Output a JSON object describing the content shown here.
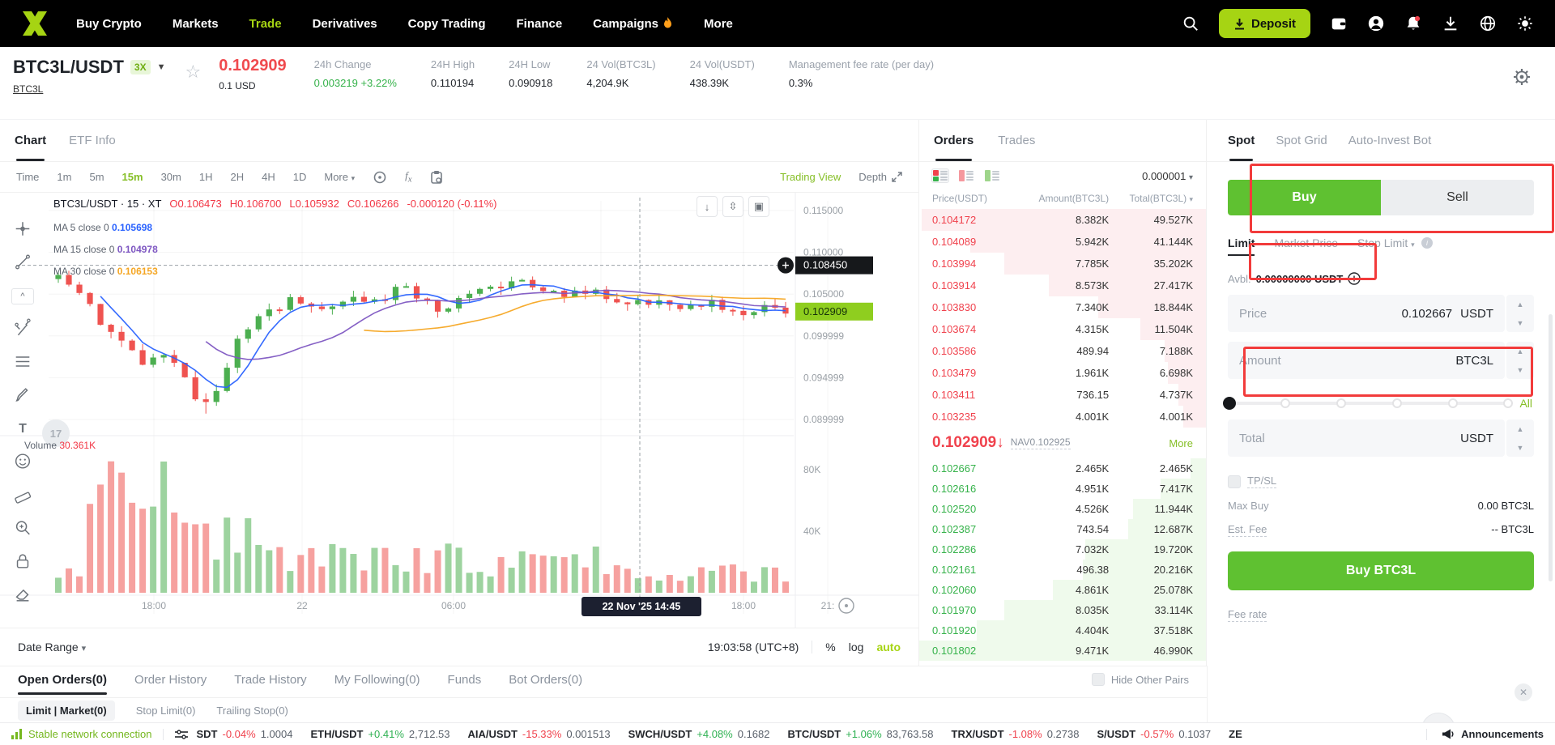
{
  "nav": {
    "logo": "XT",
    "items": [
      {
        "label": "Buy Crypto"
      },
      {
        "label": "Markets"
      },
      {
        "label": "Trade",
        "active": true
      },
      {
        "label": "Derivatives"
      },
      {
        "label": "Copy Trading"
      },
      {
        "label": "Finance"
      },
      {
        "label": "Campaigns",
        "flame": true
      },
      {
        "label": "More"
      }
    ],
    "deposit_label": "Deposit",
    "right_icons": [
      "search-icon",
      "wallet-icon",
      "account-icon",
      "notifications-icon",
      "download-icon",
      "globe-icon",
      "theme-icon"
    ]
  },
  "pair_header": {
    "symbol": "BTC3L/USDT",
    "leverage": "3X",
    "base_link": "BTC3L",
    "last_price": "0.102909",
    "usd_price": "0.1 USD",
    "stats": [
      {
        "label": "24h Change",
        "value": "0.003219 +3.22%",
        "green": true
      },
      {
        "label": "24H High",
        "value": "0.110194"
      },
      {
        "label": "24H Low",
        "value": "0.090918"
      },
      {
        "label": "24 Vol(BTC3L)",
        "value": "4,204.9K"
      },
      {
        "label": "24 Vol(USDT)",
        "value": "438.39K"
      },
      {
        "label": "Management fee rate (per day)",
        "value": "0.3%"
      }
    ]
  },
  "chart_panel": {
    "tabs": [
      {
        "label": "Chart",
        "active": true
      },
      {
        "label": "ETF Info"
      }
    ],
    "timeframes": [
      {
        "label": "Time"
      },
      {
        "label": "1m"
      },
      {
        "label": "5m"
      },
      {
        "label": "15m",
        "active": true
      },
      {
        "label": "30m"
      },
      {
        "label": "1H"
      },
      {
        "label": "2H"
      },
      {
        "label": "4H"
      },
      {
        "label": "1D"
      },
      {
        "label": "More",
        "caret": true
      }
    ],
    "trading_view_label": "Trading View",
    "depth_label": "Depth",
    "legend_title": "BTC3L/USDT · 15 · XT",
    "ohlc": {
      "o": "O0.106473",
      "h": "H0.106700",
      "l": "L0.105932",
      "c": "C0.106266",
      "chg": "-0.000120 (-0.11%)"
    },
    "ma": [
      {
        "label": "MA 5 close 0",
        "value": "0.105698",
        "color": "#2962ff"
      },
      {
        "label": "MA 15 close 0",
        "value": "0.104978",
        "color": "#7e57c2"
      },
      {
        "label": "MA 30 close 0",
        "value": "0.106153",
        "color": "#f5a623"
      }
    ],
    "volume_label": "Volume",
    "volume_value": "30.361K",
    "crosshair_price": "0.108450",
    "current_price": "0.102909",
    "tooltip_time": "22 Nov '25  14:45",
    "date_range_label": "Date Range",
    "clock": "19:03:58 (UTC+8)",
    "scale_pct": "%",
    "scale_log": "log",
    "scale_auto": "auto"
  },
  "chart_data": {
    "type": "candlestick",
    "symbol": "BTC3L/USDT",
    "interval": "15m",
    "price_axis_ticks": [
      [
        "0.115000",
        0.115
      ],
      [
        "0.110000",
        0.11
      ],
      [
        "0.105000",
        0.105
      ],
      [
        "0.099999",
        0.099999
      ],
      [
        "0.094999",
        0.094999
      ],
      [
        "0.089999",
        0.089999
      ]
    ],
    "volume_axis_ticks": [
      [
        "80K",
        80
      ],
      [
        "40K",
        40
      ]
    ],
    "time_axis_ticks": [
      [
        "18:00",
        190
      ],
      [
        "22",
        373
      ],
      [
        "06:00",
        560
      ],
      [
        "12:00",
        742
      ],
      [
        "18:00",
        918
      ],
      [
        "21:",
        1022
      ]
    ],
    "ylim": [
      0.0885,
      0.1175
    ],
    "crosshair": {
      "x": 790,
      "price": 0.10845
    },
    "last_price": 0.102909,
    "pivots": [
      [
        0,
        0.1068
      ],
      [
        0.03,
        0.1052
      ],
      [
        0.06,
        0.1014
      ],
      [
        0.09,
        0.0988
      ],
      [
        0.12,
        0.0965
      ],
      [
        0.14,
        0.0986
      ],
      [
        0.16,
        0.0966
      ],
      [
        0.18,
        0.0938
      ],
      [
        0.2,
        0.0916
      ],
      [
        0.22,
        0.0942
      ],
      [
        0.25,
        0.0998
      ],
      [
        0.28,
        0.1022
      ],
      [
        0.32,
        0.1044
      ],
      [
        0.36,
        0.1028
      ],
      [
        0.4,
        0.1048
      ],
      [
        0.44,
        0.1038
      ],
      [
        0.47,
        0.106
      ],
      [
        0.5,
        0.1041
      ],
      [
        0.53,
        0.1032
      ],
      [
        0.56,
        0.1049
      ],
      [
        0.6,
        0.1058
      ],
      [
        0.63,
        0.1069
      ],
      [
        0.66,
        0.1056
      ],
      [
        0.7,
        0.1048
      ],
      [
        0.74,
        0.1053
      ],
      [
        0.78,
        0.1038
      ],
      [
        0.82,
        0.1044
      ],
      [
        0.86,
        0.1032
      ],
      [
        0.9,
        0.1038
      ],
      [
        0.94,
        0.1028
      ],
      [
        0.97,
        0.1033
      ],
      [
        1,
        0.1029
      ]
    ],
    "low_wick": {
      "index_fraction": 0.2,
      "price": 0.0907
    },
    "up_color": "#4CAF50",
    "down_color": "#ef5350"
  },
  "orderbook": {
    "tabs": [
      {
        "label": "Orders",
        "active": true
      },
      {
        "label": "Trades"
      }
    ],
    "precision": "0.000001",
    "headers": [
      "Price(USDT)",
      "Amount(BTC3L)",
      "Total(BTC3L)"
    ],
    "asks": [
      {
        "price": "0.104172",
        "amount": "8.382K",
        "total": "49.527K"
      },
      {
        "price": "0.104089",
        "amount": "5.942K",
        "total": "41.144K"
      },
      {
        "price": "0.103994",
        "amount": "7.785K",
        "total": "35.202K"
      },
      {
        "price": "0.103914",
        "amount": "8.573K",
        "total": "27.417K"
      },
      {
        "price": "0.103830",
        "amount": "7.340K",
        "total": "18.844K"
      },
      {
        "price": "0.103674",
        "amount": "4.315K",
        "total": "11.504K"
      },
      {
        "price": "0.103586",
        "amount": "489.94",
        "total": "7.188K"
      },
      {
        "price": "0.103479",
        "amount": "1.961K",
        "total": "6.698K"
      },
      {
        "price": "0.103411",
        "amount": "736.15",
        "total": "4.737K"
      },
      {
        "price": "0.103235",
        "amount": "4.001K",
        "total": "4.001K"
      }
    ],
    "mid": {
      "price": "0.102909",
      "arrow": "↓",
      "nav": "NAV0.102925",
      "more": "More"
    },
    "bids": [
      {
        "price": "0.102667",
        "amount": "2.465K",
        "total": "2.465K"
      },
      {
        "price": "0.102616",
        "amount": "4.951K",
        "total": "7.417K"
      },
      {
        "price": "0.102520",
        "amount": "4.526K",
        "total": "11.944K"
      },
      {
        "price": "0.102387",
        "amount": "743.54",
        "total": "12.687K"
      },
      {
        "price": "0.102286",
        "amount": "7.032K",
        "total": "19.720K"
      },
      {
        "price": "0.102161",
        "amount": "496.38",
        "total": "20.216K"
      },
      {
        "price": "0.102060",
        "amount": "4.861K",
        "total": "25.078K"
      },
      {
        "price": "0.101970",
        "amount": "8.035K",
        "total": "33.114K"
      },
      {
        "price": "0.101920",
        "amount": "4.404K",
        "total": "37.518K"
      },
      {
        "price": "0.101802",
        "amount": "9.471K",
        "total": "46.990K"
      }
    ],
    "max_ask_total": 50.0,
    "max_bid_total": 47.0
  },
  "trade_panel": {
    "tabs": [
      {
        "label": "Spot",
        "active": true
      },
      {
        "label": "Spot Grid"
      },
      {
        "label": "Auto-Invest Bot"
      }
    ],
    "buy_label": "Buy",
    "sell_label": "Sell",
    "order_type_tabs": [
      {
        "label": "Limit",
        "active": true
      },
      {
        "label": "Market Price"
      }
    ],
    "stop_limit_label": "Stop Limit",
    "avbl_label": "Avbl:",
    "avbl_value": "0.00000000 USDT",
    "price_field": {
      "label": "Price",
      "value": "0.102667",
      "unit": "USDT"
    },
    "amount_field": {
      "label": "Amount",
      "unit": "BTC3L"
    },
    "slider_all": "All",
    "total_field": {
      "label": "Total",
      "unit": "USDT"
    },
    "tpsl_label": "TP/SL",
    "max_buy_label": "Max Buy",
    "max_buy_value": "0.00 BTC3L",
    "est_fee_label": "Est. Fee",
    "est_fee_value": "-- BTC3L",
    "submit_label": "Buy BTC3L",
    "fee_rate_label": "Fee rate"
  },
  "bottom_panel": {
    "tabs": [
      {
        "label": "Open Orders(0)",
        "active": true
      },
      {
        "label": "Order History"
      },
      {
        "label": "Trade History"
      },
      {
        "label": "My Following(0)"
      },
      {
        "label": "Funds"
      },
      {
        "label": "Bot Orders(0)"
      }
    ],
    "hide_other_pairs": "Hide Other Pairs",
    "subtabs": [
      {
        "label": "Limit | Market(0)",
        "pill": true
      },
      {
        "label": "Stop Limit(0)"
      },
      {
        "label": "Trailing Stop(0)"
      }
    ]
  },
  "status_bar": {
    "network": "Stable network connection",
    "tickers": [
      {
        "pair": "SDT",
        "chg": "-0.04%",
        "dir": "down",
        "price": "1.0004"
      },
      {
        "pair": "ETH/USDT",
        "chg": "+0.41%",
        "dir": "up",
        "price": "2,712.53"
      },
      {
        "pair": "AIA/USDT",
        "chg": "-15.33%",
        "dir": "down",
        "price": "0.001513"
      },
      {
        "pair": "SWCH/USDT",
        "chg": "+4.08%",
        "dir": "up",
        "price": "0.1682"
      },
      {
        "pair": "BTC/USDT",
        "chg": "+1.06%",
        "dir": "up",
        "price": "83,763.58"
      },
      {
        "pair": "TRX/USDT",
        "chg": "-1.08%",
        "dir": "down",
        "price": "0.2738"
      },
      {
        "pair": "S/USDT",
        "chg": "-0.57%",
        "dir": "down",
        "price": "0.1037"
      },
      {
        "pair": "ZE",
        "chg": "",
        "dir": "up",
        "price": ""
      }
    ],
    "announcements": "Announcements"
  },
  "colors": {
    "brand_lime": "#a6d413",
    "buy_green": "#5fc131",
    "pos_green": "#35b24a",
    "neg_red": "#f0424d",
    "ask_bg": "#fdeef0",
    "bid_bg": "#effaec",
    "annotation_red": "#f23b3b",
    "crosshair_tag": "#16181b",
    "price_tag_green": "#8fce1f"
  }
}
